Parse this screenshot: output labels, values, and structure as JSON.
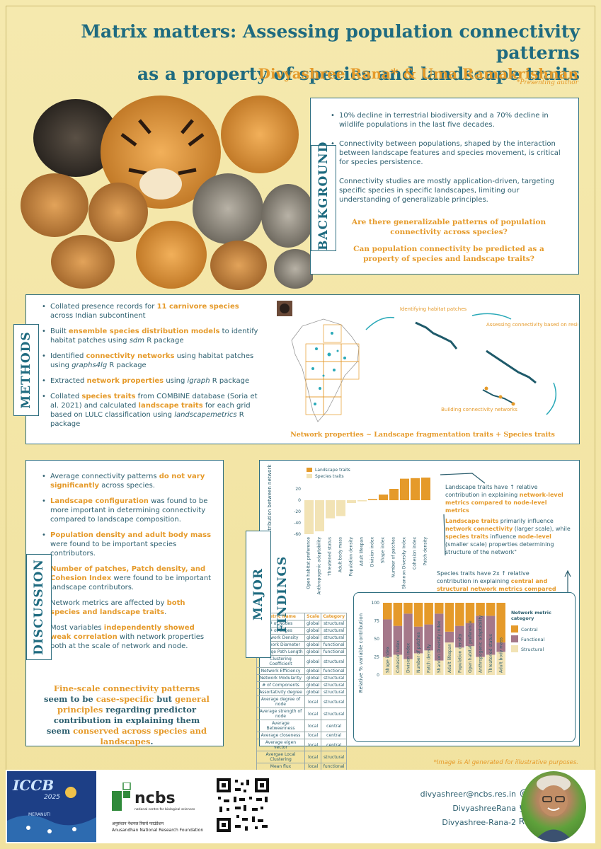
{
  "title_line1": "Matrix matters: Assessing population connectivity patterns",
  "title_line2": "as a property of species and landscape traits",
  "authors": "Divyashree Rana* & Uma Ramakrishnan",
  "presenting": "*Presenting author",
  "colors": {
    "teal": "#1f6b80",
    "orange": "#e59a2a",
    "cream": "#f4e7a8",
    "mauve": "#a5788a",
    "beige": "#f2e3b5"
  },
  "background": {
    "tag": "BACKGROUND",
    "bullets": [
      "10% decline in terrestrial biodiversity and a 70% decline in wildlife populations in the last five decades.",
      "Connectivity between populations, shaped by the interaction between landscape features and species movement, is critical for species persistence.",
      "Connectivity studies are mostly application-driven, targeting specific species in specific landscapes, limiting our understanding of generalizable principles."
    ],
    "question1": "Are there generalizable patterns of population connectivity across species?",
    "question2": "Can population connectivity be predicted as a property of species and landscape traits?"
  },
  "methods": {
    "tag": "METHODS",
    "b1_pre": "Collated presence records for ",
    "b1_hl": "11 carnivore species",
    "b1_post": " across Indian subcontinent",
    "b2_pre": "Built ",
    "b2_hl": "ensemble species distribution models",
    "b2_post": " to identify habitat patches using ",
    "b2_it": "sdm",
    "b2_post2": " R package",
    "b3_pre": "Identified ",
    "b3_hl": "connectivity networks",
    "b3_post": " using habitat patches using ",
    "b3_it": "graphs4lg",
    "b3_post2": " R package",
    "b4_pre": "Extracted ",
    "b4_hl": "network properties",
    "b4_post": " using ",
    "b4_it": "igraph",
    "b4_post2": " R package",
    "b5_pre": "Collated ",
    "b5_hl": "species traits",
    "b5_mid": " from COMBINE database (Soria et al. 2021) and calculated ",
    "b5_hl2": "landscape traits",
    "b5_post": " for each grid based on LULC classification using ",
    "b5_it": "landscapemetrics",
    "b5_post2": " R package",
    "label_habitat": "Identifying habitat patches",
    "label_assess": "Assessing connectivity based on resistance surface",
    "label_build": "Building connectivity networks",
    "equation": "Network properties ~ Landscape fragmentation traits + Species traits"
  },
  "discussion": {
    "tag": "DISCUSSION",
    "d1_pre": "Average connectivity patterns ",
    "d1_hl": "do not vary significantly",
    "d1_post": " across species.",
    "d2_hl": "Landscape configuration",
    "d2_post": " was found to be more important in determining connectivity compared to landscape composition.",
    "d3_hl": "Population density and adult body mass",
    "d3_post": " were found to be important species contributors.",
    "d4_hl": "Number of patches, Patch density, and Cohesion Index",
    "d4_post": " were found to be important landscape contributors.",
    "d5_pre": "Network metrics are affected by ",
    "d5_hl": "both species and landscape traits",
    "d5_post": ".",
    "d6_pre": "Most variables ",
    "d6_hl": "independently showed weak correlation",
    "d6_post": " with network properties both at the scale of network and node.",
    "fine_hl1": "Fine-scale connectivity patterns",
    "fine_t1": " seem to be ",
    "fine_hl2": "case-specific",
    "fine_t2": " but ",
    "fine_hl3": "general principles",
    "fine_t3": " regarding predictor contribution in explaining them seem ",
    "fine_hl4": "conserved across species and landscapes",
    "fine_t4": "."
  },
  "findings": {
    "tag": "MAJOR FINDINGS",
    "f1_pre": "Landscape traits have ↑ relative contribution in explaining ",
    "f1_hl": "network-level metrics compared to node-level metrics",
    "f2_hl": "Landscape traits",
    "f2_t1": " primarily influence ",
    "f2_hl2": "network connectivity",
    "f2_t2": " (larger scale), while ",
    "f2_hl3": "species traits",
    "f2_t3": " influence ",
    "f2_hl4": "node-level",
    "f2_t4": " (smaller scale) properties determining structure of the network\"",
    "f3_pre": "Species traits have 2x ↑ relative contribution in explaining ",
    "f3_hl": "central and structural network metrics compared to functional network metrics"
  },
  "chart_data": [
    {
      "type": "bar",
      "title": "",
      "ylabel": "Difference in % variable contribution between network & node-level metrics",
      "ylim": [
        -60,
        40
      ],
      "yticks": [
        20,
        0,
        -20,
        -40,
        -60
      ],
      "legend": [
        "Landscape traits",
        "Species traits"
      ],
      "legend_position": "top-left",
      "categories": [
        "Open habitat preference",
        "Anthropogenic adaptability",
        "Threatened status",
        "Adult body mass",
        "Population density",
        "Adult lifespan",
        "Division index",
        "Shape index",
        "Number of patches",
        "Shannon Diversity Index",
        "Cohesion index",
        "Patch density"
      ],
      "values": [
        -60,
        -55,
        -32,
        -28,
        -5,
        -2,
        2,
        10,
        20,
        38,
        39,
        40
      ],
      "group": [
        "Species traits",
        "Species traits",
        "Species traits",
        "Species traits",
        "Species traits",
        "Species traits",
        "Landscape traits",
        "Landscape traits",
        "Landscape traits",
        "Landscape traits",
        "Landscape traits",
        "Landscape traits"
      ]
    },
    {
      "type": "bar",
      "stacked": true,
      "ylabel": "Relative % variable contribution",
      "ylim": [
        0,
        100
      ],
      "yticks": [
        100,
        75,
        50,
        25,
        0
      ],
      "legend_title": "Network metric category",
      "legend_position": "right",
      "categories": [
        "Shape index",
        "Cohesion index",
        "Division index",
        "Number of patches",
        "Patch density",
        "Shannon Diversity Index",
        "Adult lifespan",
        "Population density",
        "Open habitat preference",
        "Anthropogenic adaptability",
        "Threatened status",
        "Adult body mass"
      ],
      "series": [
        {
          "name": "Structural",
          "values": [
            25,
            28,
            22,
            30,
            34,
            20,
            45,
            38,
            40,
            25,
            28,
            32
          ]
        },
        {
          "name": "Functional",
          "values": [
            52,
            40,
            63,
            37,
            36,
            65,
            15,
            30,
            32,
            57,
            54,
            13
          ]
        },
        {
          "name": "Central",
          "values": [
            23,
            32,
            15,
            33,
            30,
            15,
            40,
            32,
            28,
            18,
            18,
            55
          ]
        }
      ]
    }
  ],
  "metric_table": {
    "headers": [
      "Metric Name",
      "Scale",
      "Category"
    ],
    "rows": [
      [
        "# of Nodes",
        "global",
        "structural"
      ],
      [
        "# of Edges",
        "global",
        "structural"
      ],
      [
        "Network Density",
        "global",
        "structural"
      ],
      [
        "Network Diameter",
        "global",
        "functional"
      ],
      [
        "Average Path Length",
        "global",
        "functional"
      ],
      [
        "Clustering Coefficient",
        "global",
        "structural"
      ],
      [
        "Network Efficiency",
        "global",
        "functional"
      ],
      [
        "Network Modularity",
        "global",
        "structural"
      ],
      [
        "# of Components",
        "global",
        "structural"
      ],
      [
        "Assortativity degree",
        "global",
        "structural"
      ],
      [
        "Average degree of node",
        "local",
        "structural"
      ],
      [
        "Average strength of node",
        "local",
        "structural"
      ],
      [
        "Average Betweenness",
        "local",
        "central"
      ],
      [
        "Average closeness",
        "local",
        "central"
      ],
      [
        "Average eigen vector",
        "local",
        "central"
      ],
      [
        "Avergae Local Clustering",
        "local",
        "structural"
      ],
      [
        "Mean flux",
        "local",
        "functional"
      ]
    ]
  },
  "disclaimer": "*Image is AI generated for illustrative purposes.",
  "footer": {
    "conf": "ICCB",
    "year": "2025",
    "conf_sub": "MERANUTI",
    "ncbs": "ncbs",
    "ncbs_sub": "national centre for biological sciences",
    "anrf_hindi": "अनुसंधान नेशनल रिसर्च फाउंडेशन",
    "anrf": "Anusandhan National Research Foundation",
    "email": "divyashreer@ncbs.res.in",
    "twitter": "DivyashreeRana",
    "rg": "Divyashree-Rana-2",
    "email_icon": "@",
    "twitter_icon": "twitter-bird",
    "rg_icon": "Rᴳ"
  }
}
